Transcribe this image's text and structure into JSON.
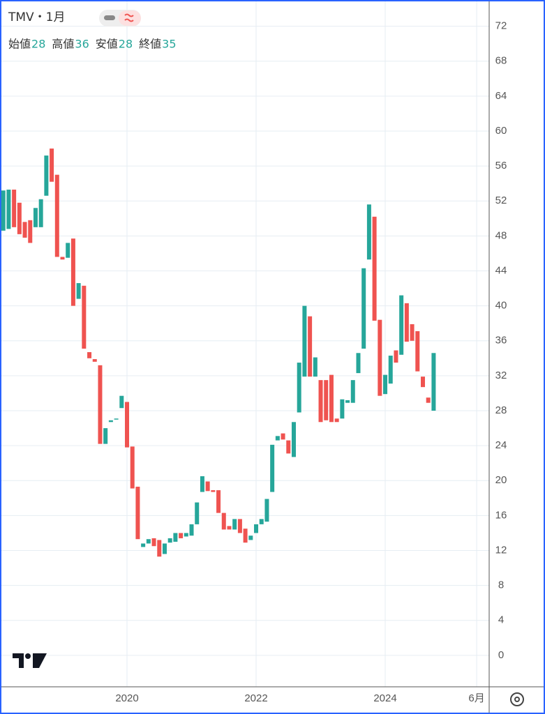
{
  "chart_data": {
    "type": "candlestick",
    "title": "TMV・1月",
    "legend": [
      {
        "label": "始値",
        "value": 28
      },
      {
        "label": "高値",
        "value": 36
      },
      {
        "label": "安値",
        "value": 28
      },
      {
        "label": "終値",
        "value": 35
      }
    ],
    "x": [
      "2018-02",
      "2018-03",
      "2018-04",
      "2018-05",
      "2018-06",
      "2018-07",
      "2018-08",
      "2018-09",
      "2018-10",
      "2018-11",
      "2018-12",
      "2019-01",
      "2019-02",
      "2019-03",
      "2019-04",
      "2019-05",
      "2019-06",
      "2019-07",
      "2019-08",
      "2019-09",
      "2019-10",
      "2019-11",
      "2019-12",
      "2020-01",
      "2020-02",
      "2020-03",
      "2020-04",
      "2020-05",
      "2020-06",
      "2020-07",
      "2020-08",
      "2020-09",
      "2020-10",
      "2020-11",
      "2020-12",
      "2021-01",
      "2021-02",
      "2021-03",
      "2021-04",
      "2021-05",
      "2021-06",
      "2021-07",
      "2021-08",
      "2021-09",
      "2021-10",
      "2021-11",
      "2021-12",
      "2022-01",
      "2022-02",
      "2022-03",
      "2022-04",
      "2022-05",
      "2022-06",
      "2022-07",
      "2022-08",
      "2022-09",
      "2022-10",
      "2022-11",
      "2022-12",
      "2023-01",
      "2023-02",
      "2023-03",
      "2023-04",
      "2023-05",
      "2023-06",
      "2023-07",
      "2023-08",
      "2023-09",
      "2023-10",
      "2023-11",
      "2023-12",
      "2024-01",
      "2024-02",
      "2024-03",
      "2024-04",
      "2024-05",
      "2024-06",
      "2024-07",
      "2024-08",
      "2024-09",
      "2024-10"
    ],
    "open": [
      48.6,
      48.8,
      53.3,
      51.8,
      49.6,
      49.8,
      49.0,
      49.0,
      52.6,
      58.0,
      55.0,
      45.6,
      45.5,
      47.7,
      40.8,
      42.3,
      34.7,
      33.9,
      33.2,
      24.2,
      26.7,
      27.0,
      28.3,
      29.0,
      23.9,
      19.3,
      12.4,
      12.8,
      13.4,
      13.2,
      11.6,
      12.9,
      13.0,
      14.0,
      13.6,
      13.7,
      15.0,
      18.7,
      19.9,
      18.9,
      18.9,
      16.3,
      14.8,
      14.4,
      15.6,
      14.5,
      13.2,
      14.0,
      15.0,
      15.3,
      18.7,
      24.6,
      25.4,
      24.6,
      22.7,
      27.8,
      31.9,
      38.8,
      31.9,
      31.5,
      31.5,
      32.1,
      27.1,
      27.1,
      28.9,
      28.9,
      32.3,
      35.1,
      45.3,
      50.2,
      38.4,
      29.9,
      31.1,
      34.9,
      34.4,
      40.3,
      37.9,
      37.1,
      31.9,
      29.5,
      28.0
    ],
    "close": [
      53.2,
      53.3,
      49.0,
      48.2,
      47.8,
      47.2,
      51.2,
      52.2,
      57.2,
      54.2,
      45.6,
      45.3,
      47.2,
      40.0,
      42.6,
      35.1,
      34.0,
      33.6,
      24.2,
      26.0,
      26.9,
      27.1,
      29.7,
      23.8,
      19.1,
      13.3,
      12.8,
      13.3,
      12.5,
      11.3,
      12.8,
      13.4,
      14.0,
      13.4,
      14.0,
      15.0,
      17.5,
      20.5,
      18.8,
      18.7,
      16.3,
      14.4,
      14.4,
      15.6,
      14.0,
      12.9,
      13.7,
      15.0,
      15.6,
      17.9,
      24.1,
      25.1,
      24.7,
      23.1,
      26.7,
      33.5,
      40.0,
      31.9,
      34.1,
      26.7,
      26.9,
      26.7,
      26.7,
      29.3,
      29.2,
      31.5,
      34.6,
      44.3,
      51.6,
      38.3,
      29.7,
      32.1,
      34.3,
      33.5,
      41.2,
      35.9,
      36.0,
      32.5,
      30.7,
      28.9,
      34.6
    ],
    "up_color": "#26a69a",
    "down_color": "#ef5350",
    "ylim": [
      -3.6,
      75
    ],
    "yticks": [
      0,
      4,
      8,
      12,
      16,
      20,
      24,
      28,
      32,
      36,
      40,
      44,
      48,
      52,
      56,
      60,
      64,
      68,
      72
    ],
    "xlim": [
      "2018-01",
      "2025-08"
    ],
    "xticks": [
      {
        "value": "2020-01",
        "label": "2020"
      },
      {
        "value": "2022-01",
        "label": "2022"
      },
      {
        "value": "2024-01",
        "label": "2024"
      },
      {
        "value": "2025-06",
        "label": "6月"
      }
    ],
    "grid": true
  }
}
